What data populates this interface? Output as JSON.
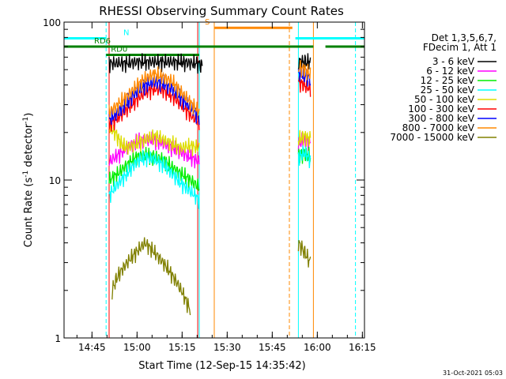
{
  "chart_data": {
    "type": "line",
    "title": "RHESSI Observing Summary Count Rates",
    "xlabel": "Start Time (12-Sep-15 14:35:42)",
    "ylabel_main": "Count Rate (s",
    "ylabel_sup": "-1",
    "ylabel_mid": " detector",
    "ylabel_sup2": "-1",
    "ylabel_end": ")",
    "yscale": "log",
    "ylim": [
      1,
      100
    ],
    "xlim_min": [
      0,
      100
    ],
    "x_ticks_min": [
      9.3,
      24.3,
      39.3,
      54.3,
      69.3,
      84.3,
      99.3
    ],
    "x_tick_labels": [
      "14:45",
      "15:00",
      "15:15",
      "15:30",
      "15:45",
      "16:00",
      "16:15"
    ],
    "y_ticks": [
      1,
      10,
      100
    ],
    "y_tick_labels": [
      "1",
      "10",
      "100"
    ],
    "legend_header": [
      "Det 1,3,5,6,7,",
      "FDecim 1, Att 1"
    ],
    "timestamp": "31-Oct-2021 05:03",
    "series": [
      {
        "name": "3 - 6 keV",
        "color": "#000000",
        "segments": [
          [
            [
              15,
              55
            ],
            [
              18,
              55
            ],
            [
              21,
              55
            ],
            [
              24,
              56
            ],
            [
              27,
              56
            ],
            [
              30,
              56
            ],
            [
              33,
              56
            ],
            [
              36,
              56
            ],
            [
              39,
              56
            ],
            [
              41,
              55
            ],
            [
              44,
              55
            ],
            [
              46,
              53
            ]
          ],
          [
            [
              78,
              56
            ],
            [
              80,
              56
            ],
            [
              82,
              56
            ]
          ]
        ]
      },
      {
        "name": "6 - 12 keV",
        "color": "#ff00ff",
        "segments": [
          [
            [
              15,
              13
            ],
            [
              18,
              14.5
            ],
            [
              21,
              16
            ],
            [
              24,
              17.5
            ],
            [
              27,
              18
            ],
            [
              30,
              18
            ],
            [
              33,
              17
            ],
            [
              36,
              16
            ],
            [
              39,
              15
            ],
            [
              42,
              14
            ],
            [
              45,
              13
            ]
          ],
          [
            [
              78,
              17
            ],
            [
              80,
              18
            ],
            [
              82,
              17
            ]
          ]
        ]
      },
      {
        "name": "12 - 25 keV",
        "color": "#00ee00",
        "segments": [
          [
            [
              15,
              10
            ],
            [
              18,
              11
            ],
            [
              21,
              12.5
            ],
            [
              24,
              14
            ],
            [
              27,
              14.5
            ],
            [
              30,
              14
            ],
            [
              33,
              13.5
            ],
            [
              36,
              12
            ],
            [
              39,
              11
            ],
            [
              42,
              10
            ],
            [
              45,
              9
            ]
          ],
          [
            [
              78,
              14
            ],
            [
              80,
              15
            ],
            [
              82,
              14
            ]
          ]
        ]
      },
      {
        "name": "25 - 50 keV",
        "color": "#00ffff",
        "segments": [
          [
            [
              15,
              8
            ],
            [
              18,
              9.5
            ],
            [
              21,
              11
            ],
            [
              24,
              13
            ],
            [
              27,
              14
            ],
            [
              30,
              13.5
            ],
            [
              33,
              12.5
            ],
            [
              36,
              11
            ],
            [
              39,
              9.5
            ],
            [
              42,
              8.5
            ],
            [
              45,
              7.5
            ]
          ],
          [
            [
              78,
              14
            ],
            [
              80,
              15
            ],
            [
              82,
              13.5
            ]
          ]
        ]
      },
      {
        "name": "50 - 100 keV",
        "color": "#dddd00",
        "segments": [
          [
            [
              15,
              22
            ],
            [
              17,
              20
            ],
            [
              19,
              17
            ],
            [
              21,
              16
            ],
            [
              24,
              17
            ],
            [
              27,
              18
            ],
            [
              30,
              19
            ],
            [
              33,
              18
            ],
            [
              36,
              17
            ],
            [
              39,
              16
            ],
            [
              42,
              16.5
            ],
            [
              45,
              16
            ]
          ],
          [
            [
              78,
              18
            ],
            [
              80,
              19
            ],
            [
              82,
              18
            ]
          ]
        ]
      },
      {
        "name": "100 - 300 keV",
        "color": "#ff0000",
        "segments": [
          [
            [
              15,
              22
            ],
            [
              18,
              25
            ],
            [
              21,
              28
            ],
            [
              24,
              32
            ],
            [
              27,
              36
            ],
            [
              30,
              38
            ],
            [
              33,
              37
            ],
            [
              36,
              34
            ],
            [
              39,
              30
            ],
            [
              42,
              26
            ],
            [
              45,
              23
            ]
          ],
          [
            [
              78,
              42
            ],
            [
              80,
              40
            ],
            [
              82,
              38
            ]
          ]
        ]
      },
      {
        "name": "300 - 800 keV",
        "color": "#0000ff",
        "segments": [
          [
            [
              15,
              24
            ],
            [
              18,
              27
            ],
            [
              21,
              31
            ],
            [
              24,
              36
            ],
            [
              27,
              40
            ],
            [
              30,
              42
            ],
            [
              33,
              41
            ],
            [
              36,
              38
            ],
            [
              39,
              33
            ],
            [
              42,
              29
            ],
            [
              45,
              25
            ]
          ],
          [
            [
              78,
              48
            ],
            [
              80,
              46
            ],
            [
              82,
              44
            ]
          ]
        ]
      },
      {
        "name": "800 - 7000 keV",
        "color": "#ff8800",
        "segments": [
          [
            [
              15,
              27
            ],
            [
              18,
              30
            ],
            [
              21,
              34
            ],
            [
              24,
              39
            ],
            [
              27,
              44
            ],
            [
              30,
              47
            ],
            [
              33,
              45
            ],
            [
              36,
              42
            ],
            [
              39,
              36
            ],
            [
              42,
              31
            ],
            [
              45,
              27
            ]
          ],
          [
            [
              78,
              52
            ],
            [
              80,
              50
            ],
            [
              82,
              47
            ]
          ]
        ]
      },
      {
        "name": "7000 - 15000 keV",
        "color": "#808000",
        "segments": [
          [
            [
              16,
              2
            ],
            [
              18,
              2.5
            ],
            [
              21,
              3
            ],
            [
              24,
              3.5
            ],
            [
              27,
              4
            ],
            [
              30,
              3.5
            ],
            [
              33,
              3
            ],
            [
              36,
              2.5
            ],
            [
              39,
              2
            ],
            [
              42,
              1.5
            ]
          ],
          [
            [
              78,
              4
            ],
            [
              80,
              3.5
            ],
            [
              82,
              3
            ]
          ]
        ]
      }
    ],
    "flag_bars": [
      {
        "label": "N",
        "color": "#00ffff",
        "y": 79,
        "segments": [
          [
            0,
            14
          ],
          [
            77,
            100
          ]
        ]
      },
      {
        "label": "RD0",
        "color": "#008000",
        "y": 62,
        "segments": [
          [
            14,
            45
          ]
        ]
      },
      {
        "label": "RD6",
        "color": "#008000",
        "y": 70,
        "segments": [
          [
            0,
            83
          ],
          [
            87,
            100
          ]
        ]
      },
      {
        "label": "S",
        "color": "#ff8800",
        "y": 92,
        "segments": [
          [
            50,
            76
          ]
        ]
      }
    ],
    "vlines": [
      {
        "x": 0,
        "color": "#00ffff",
        "dash": false
      },
      {
        "x": 14,
        "color": "#00ffff",
        "dash": true
      },
      {
        "x": 45,
        "color": "#00ffff",
        "dash": false
      },
      {
        "x": 50,
        "color": "#ff8800",
        "dash": false
      },
      {
        "x": 75,
        "color": "#ff8800",
        "dash": true
      },
      {
        "x": 78,
        "color": "#00ffff",
        "dash": false
      },
      {
        "x": 83,
        "color": "#ff8800",
        "dash": false
      },
      {
        "x": 97,
        "color": "#00ffff",
        "dash": true
      },
      {
        "x": 15,
        "color": "#ff0000",
        "dash": false
      },
      {
        "x": 44.5,
        "color": "#ff0000",
        "dash": false
      }
    ]
  }
}
